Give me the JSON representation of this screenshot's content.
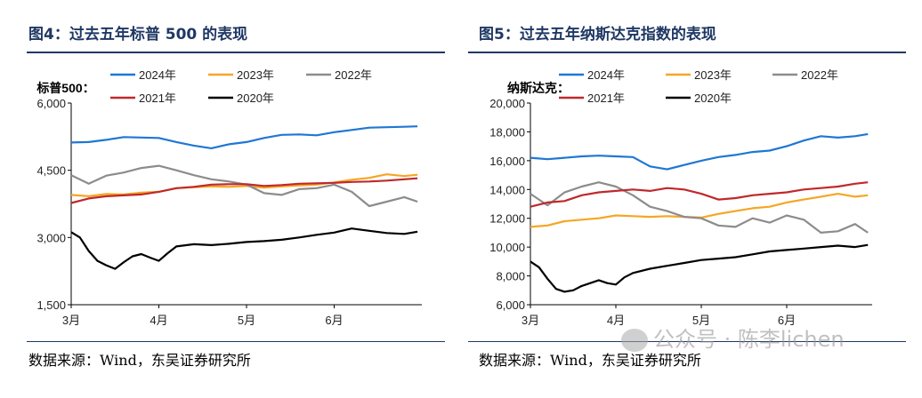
{
  "figures": [
    {
      "title": "图4：过去五年标普 500 的表现",
      "source": "数据来源：Wind，东吴证券研究所"
    },
    {
      "title": "图5：过去五年纳斯达克指数的表现",
      "source": "数据来源：Wind，东吴证券研究所"
    }
  ],
  "watermark": "公众号 · 陈李lichen",
  "chart_data": [
    {
      "type": "line",
      "title": "图4：过去五年标普 500 的表现",
      "ylabel": "标普500：",
      "xlabel": "",
      "ylim": [
        1500,
        6000
      ],
      "yticks": [
        1500,
        3000,
        4500,
        6000
      ],
      "ytick_labels": [
        "1,500",
        "3,000",
        "4,500",
        "6,000"
      ],
      "xlim": [
        0,
        4
      ],
      "xticks": [
        0,
        1,
        2,
        3
      ],
      "xtick_labels": [
        "3月",
        "4月",
        "5月",
        "6月"
      ],
      "grid": false,
      "legend_position": "top",
      "series": [
        {
          "name": "2024年",
          "color": "#1f77d4",
          "x": [
            0,
            0.2,
            0.4,
            0.6,
            0.8,
            1.0,
            1.2,
            1.4,
            1.6,
            1.8,
            2.0,
            2.2,
            2.4,
            2.6,
            2.8,
            3.0,
            3.2,
            3.4,
            3.6,
            3.8,
            3.95
          ],
          "y": [
            5120,
            5130,
            5180,
            5240,
            5230,
            5220,
            5130,
            5050,
            4990,
            5080,
            5130,
            5220,
            5290,
            5300,
            5280,
            5350,
            5400,
            5450,
            5460,
            5470,
            5480
          ]
        },
        {
          "name": "2023年",
          "color": "#f5a623",
          "x": [
            0,
            0.2,
            0.4,
            0.6,
            0.8,
            1.0,
            1.2,
            1.4,
            1.6,
            1.8,
            2.0,
            2.2,
            2.4,
            2.6,
            2.8,
            3.0,
            3.2,
            3.4,
            3.6,
            3.8,
            3.95
          ],
          "y": [
            3950,
            3920,
            3970,
            3960,
            4000,
            4020,
            4100,
            4120,
            4140,
            4130,
            4150,
            4110,
            4140,
            4160,
            4180,
            4230,
            4290,
            4330,
            4410,
            4370,
            4400
          ]
        },
        {
          "name": "2022年",
          "color": "#8c8c8c",
          "x": [
            0,
            0.2,
            0.4,
            0.6,
            0.8,
            1.0,
            1.2,
            1.4,
            1.6,
            1.8,
            2.0,
            2.2,
            2.4,
            2.6,
            2.8,
            3.0,
            3.2,
            3.4,
            3.6,
            3.8,
            3.95
          ],
          "y": [
            4390,
            4200,
            4380,
            4450,
            4550,
            4600,
            4500,
            4390,
            4300,
            4250,
            4180,
            3990,
            3950,
            4080,
            4100,
            4180,
            4020,
            3700,
            3800,
            3900,
            3800
          ]
        },
        {
          "name": "2021年",
          "color": "#c0282b",
          "x": [
            0,
            0.2,
            0.4,
            0.6,
            0.8,
            1.0,
            1.2,
            1.4,
            1.6,
            1.8,
            2.0,
            2.2,
            2.4,
            2.6,
            2.8,
            3.0,
            3.2,
            3.4,
            3.6,
            3.8,
            3.95
          ],
          "y": [
            3770,
            3870,
            3920,
            3940,
            3960,
            4020,
            4100,
            4130,
            4180,
            4190,
            4190,
            4150,
            4170,
            4200,
            4210,
            4220,
            4240,
            4250,
            4270,
            4300,
            4320
          ]
        },
        {
          "name": "2020年",
          "color": "#000000",
          "x": [
            0,
            0.1,
            0.2,
            0.3,
            0.4,
            0.5,
            0.6,
            0.7,
            0.8,
            0.9,
            1.0,
            1.1,
            1.2,
            1.4,
            1.6,
            1.8,
            2.0,
            2.2,
            2.4,
            2.6,
            2.8,
            3.0,
            3.2,
            3.4,
            3.6,
            3.8,
            3.95
          ],
          "y": [
            3120,
            3000,
            2700,
            2480,
            2380,
            2300,
            2450,
            2580,
            2630,
            2550,
            2480,
            2650,
            2800,
            2850,
            2830,
            2860,
            2900,
            2920,
            2950,
            3000,
            3060,
            3110,
            3200,
            3150,
            3100,
            3080,
            3130
          ]
        }
      ]
    },
    {
      "type": "line",
      "title": "图5：过去五年纳斯达克指数的表现",
      "ylabel": "纳斯达克：",
      "xlabel": "",
      "ylim": [
        6000,
        20000
      ],
      "yticks": [
        6000,
        8000,
        10000,
        12000,
        14000,
        16000,
        18000,
        20000
      ],
      "ytick_labels": [
        "6,000",
        "8,000",
        "10,000",
        "12,000",
        "14,000",
        "16,000",
        "18,000",
        "20,000"
      ],
      "xlim": [
        0,
        4
      ],
      "xticks": [
        0,
        1,
        2,
        3
      ],
      "xtick_labels": [
        "3月",
        "4月",
        "5月",
        "6月"
      ],
      "grid": false,
      "legend_position": "top",
      "series": [
        {
          "name": "2024年",
          "color": "#1f77d4",
          "x": [
            0,
            0.2,
            0.4,
            0.6,
            0.8,
            1.0,
            1.2,
            1.4,
            1.6,
            1.8,
            2.0,
            2.2,
            2.4,
            2.6,
            2.8,
            3.0,
            3.2,
            3.4,
            3.6,
            3.8,
            3.95
          ],
          "y": [
            16200,
            16100,
            16200,
            16300,
            16350,
            16300,
            16250,
            15600,
            15400,
            15700,
            16000,
            16250,
            16400,
            16600,
            16700,
            17000,
            17400,
            17700,
            17600,
            17700,
            17850
          ]
        },
        {
          "name": "2023年",
          "color": "#f5a623",
          "x": [
            0,
            0.2,
            0.4,
            0.6,
            0.8,
            1.0,
            1.2,
            1.4,
            1.6,
            1.8,
            2.0,
            2.2,
            2.4,
            2.6,
            2.8,
            3.0,
            3.2,
            3.4,
            3.6,
            3.8,
            3.95
          ],
          "y": [
            11400,
            11500,
            11800,
            11900,
            12000,
            12200,
            12150,
            12100,
            12150,
            12100,
            12050,
            12300,
            12500,
            12700,
            12800,
            13100,
            13300,
            13500,
            13700,
            13500,
            13600
          ]
        },
        {
          "name": "2022年",
          "color": "#8c8c8c",
          "x": [
            0,
            0.2,
            0.4,
            0.6,
            0.8,
            1.0,
            1.2,
            1.4,
            1.6,
            1.8,
            2.0,
            2.2,
            2.4,
            2.6,
            2.8,
            3.0,
            3.2,
            3.4,
            3.6,
            3.8,
            3.95
          ],
          "y": [
            13700,
            12900,
            13800,
            14200,
            14500,
            14200,
            13600,
            12800,
            12500,
            12100,
            12000,
            11500,
            11400,
            12000,
            11700,
            12200,
            11900,
            11000,
            11100,
            11600,
            11000
          ]
        },
        {
          "name": "2021年",
          "color": "#c0282b",
          "x": [
            0,
            0.2,
            0.4,
            0.6,
            0.8,
            1.0,
            1.2,
            1.4,
            1.6,
            1.8,
            2.0,
            2.2,
            2.4,
            2.6,
            2.8,
            3.0,
            3.2,
            3.4,
            3.6,
            3.8,
            3.95
          ],
          "y": [
            12800,
            13100,
            13200,
            13600,
            13800,
            13900,
            14000,
            13900,
            14100,
            14000,
            13700,
            13300,
            13400,
            13600,
            13700,
            13800,
            14000,
            14100,
            14200,
            14400,
            14500
          ]
        },
        {
          "name": "2020年",
          "color": "#000000",
          "x": [
            0,
            0.1,
            0.2,
            0.3,
            0.4,
            0.5,
            0.6,
            0.7,
            0.8,
            0.9,
            1.0,
            1.1,
            1.2,
            1.4,
            1.6,
            1.8,
            2.0,
            2.2,
            2.4,
            2.6,
            2.8,
            3.0,
            3.2,
            3.4,
            3.6,
            3.8,
            3.95
          ],
          "y": [
            9000,
            8600,
            7800,
            7100,
            6900,
            7000,
            7300,
            7500,
            7700,
            7500,
            7400,
            7900,
            8200,
            8500,
            8700,
            8900,
            9100,
            9200,
            9300,
            9500,
            9700,
            9800,
            9900,
            10000,
            10100,
            10000,
            10150
          ]
        }
      ]
    }
  ]
}
